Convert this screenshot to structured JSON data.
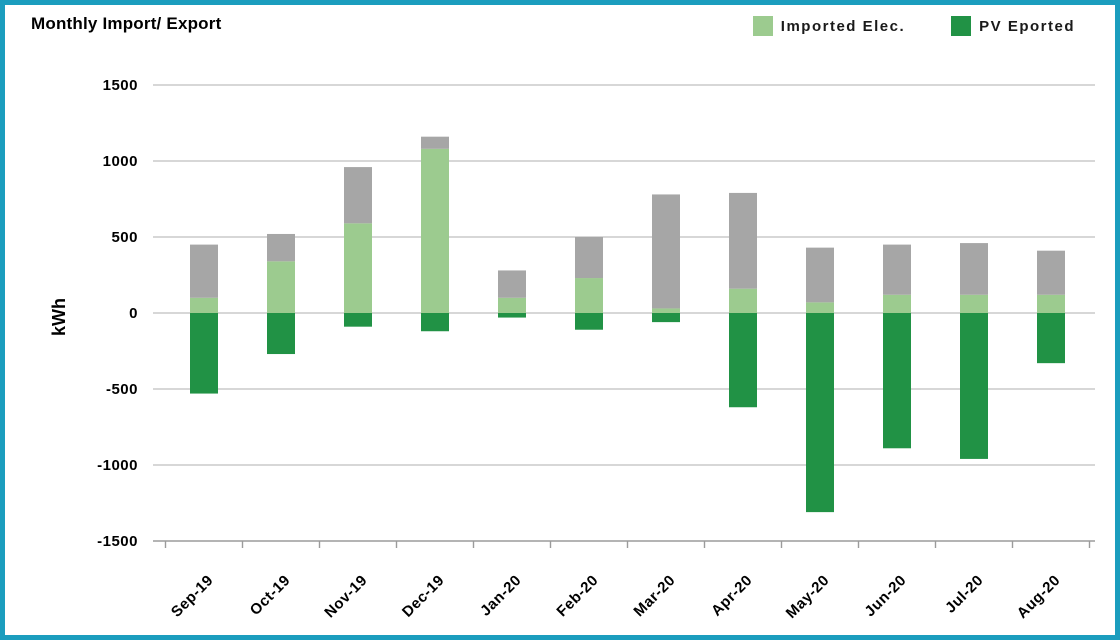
{
  "window": {
    "border_color": "#1b9dbe",
    "background": "#ffffff"
  },
  "title": "Monthly Import/ Export",
  "legend": {
    "items": [
      {
        "label": "Imported Elec.",
        "color": "#9ccb8f"
      },
      {
        "label": "PV Eported",
        "color": "#219245"
      }
    ]
  },
  "chart_data": {
    "type": "bar",
    "stacked": true,
    "title": "Monthly Import/ Export",
    "ylabel": "kWh",
    "xlabel": "",
    "ylim": [
      -1500,
      1500
    ],
    "ytick_step": 500,
    "grid": true,
    "legend_position": "top-right",
    "categories": [
      "Sep-19",
      "Oct-19",
      "Nov-19",
      "Dec-19",
      "Jan-20",
      "Feb-20",
      "Mar-20",
      "Apr-20",
      "May-20",
      "Jun-20",
      "Jul-20",
      "Aug-20"
    ],
    "series": [
      {
        "name": "Imported Elec.",
        "color": "#9ccb8f",
        "in_legend": true,
        "values": [
          100,
          340,
          590,
          1080,
          100,
          230,
          30,
          160,
          70,
          120,
          120,
          120
        ]
      },
      {
        "name": "unlabeled-gray",
        "color": "#a6a6a6",
        "in_legend": false,
        "values": [
          350,
          180,
          370,
          80,
          180,
          270,
          750,
          630,
          360,
          330,
          340,
          290
        ]
      },
      {
        "name": "PV Eported",
        "color": "#219245",
        "in_legend": true,
        "values": [
          -530,
          -270,
          -90,
          -120,
          -30,
          -110,
          -60,
          -620,
          -1310,
          -890,
          -960,
          -330
        ]
      }
    ],
    "colors": {
      "gridline": "#bfbfbf",
      "axis": "#9b9b9b",
      "text": "#000000"
    }
  }
}
